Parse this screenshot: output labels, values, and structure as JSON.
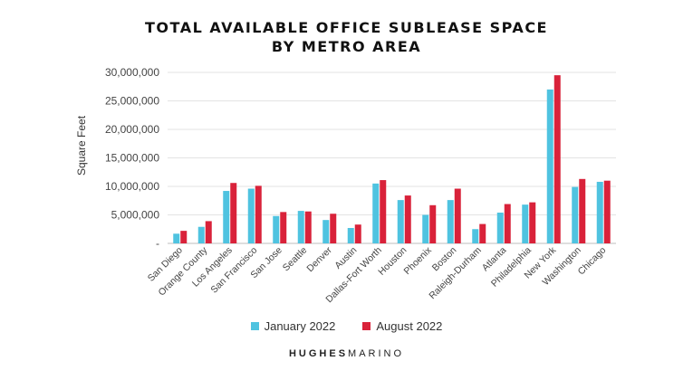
{
  "chart_data": {
    "type": "bar",
    "title": "TOTAL AVAILABLE OFFICE SUBLEASE SPACE",
    "subtitle": "BY METRO AREA",
    "xlabel": "",
    "ylabel": "Square Feet",
    "ylim": [
      0,
      30000000
    ],
    "yticks": [
      0,
      5000000,
      10000000,
      15000000,
      20000000,
      25000000,
      30000000
    ],
    "ytick_labels": [
      "-",
      "5,000,000",
      "10,000,000",
      "15,000,000",
      "20,000,000",
      "25,000,000",
      "30,000,000"
    ],
    "grid": true,
    "legend_position": "bottom",
    "categories": [
      "San Diego",
      "Orange County",
      "Los Angeles",
      "San Francisco",
      "San Jose",
      "Seattle",
      "Denver",
      "Austin",
      "Dallas-Fort Worth",
      "Houston",
      "Phoenix",
      "Boston",
      "Raleigh-Durham",
      "Atlanta",
      "Philadelphia",
      "New York",
      "Washington",
      "Chicago"
    ],
    "series": [
      {
        "name": "January 2022",
        "color": "#4fc3e0",
        "values": [
          1700000,
          2900000,
          9200000,
          9600000,
          4800000,
          5700000,
          4100000,
          2700000,
          10500000,
          7600000,
          5000000,
          7600000,
          2500000,
          5400000,
          6800000,
          27000000,
          9900000,
          10800000
        ]
      },
      {
        "name": "August 2022",
        "color": "#d9223a",
        "values": [
          2200000,
          3900000,
          10600000,
          10100000,
          5500000,
          5600000,
          5200000,
          3300000,
          11100000,
          8400000,
          6700000,
          9600000,
          3400000,
          6900000,
          7200000,
          29500000,
          11300000,
          11000000
        ]
      }
    ]
  },
  "brand": {
    "part1": "HUGHES",
    "part2": "MARINO"
  }
}
